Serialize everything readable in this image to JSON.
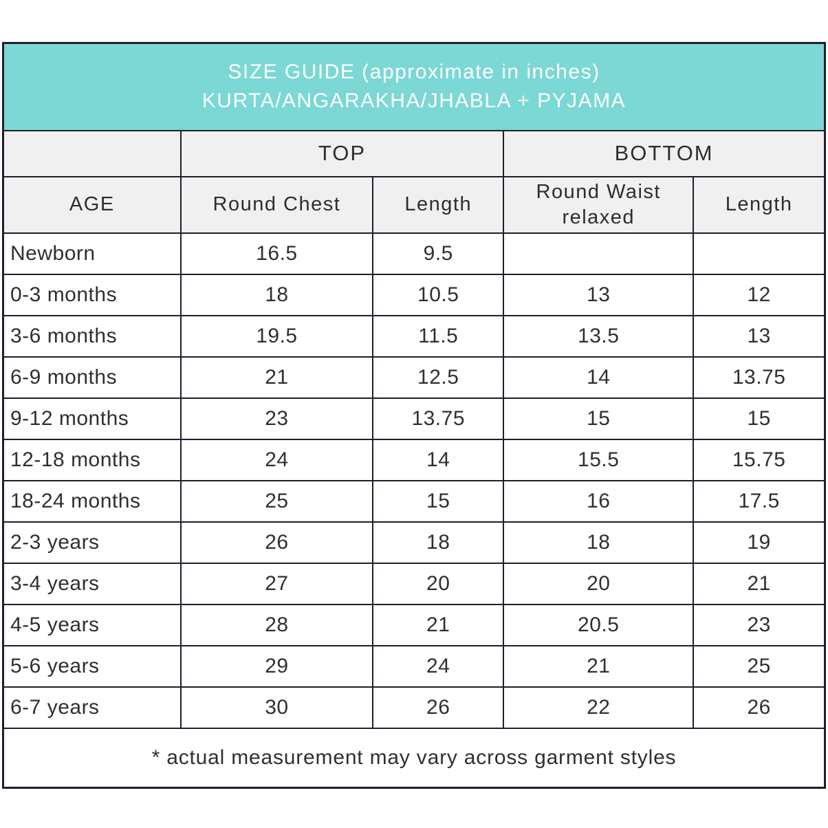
{
  "title": {
    "line1": "SIZE GUIDE (approximate in inches)",
    "line2": "KURTA/ANGARAKHA/JHABLA + PYJAMA"
  },
  "colors": {
    "title_band_bg": "#7bd8d4",
    "title_text": "#ffffff",
    "header_bg": "#f0f0f0",
    "border": "#1d1d2e",
    "body_text": "#2f2f2f"
  },
  "table": {
    "group_headers": {
      "age_spacer": "",
      "top": "TOP",
      "bottom": "BOTTOM"
    },
    "column_headers": {
      "age": "AGE",
      "round_chest": "Round Chest",
      "top_length": "Length",
      "round_waist": "Round Waist relaxed",
      "bottom_length": "Length"
    },
    "rows": [
      {
        "age": "Newborn",
        "values": [
          "16.5",
          "9.5",
          "",
          ""
        ]
      },
      {
        "age": "0-3 months",
        "values": [
          "18",
          "10.5",
          "13",
          "12"
        ]
      },
      {
        "age": "3-6 months",
        "values": [
          "19.5",
          "11.5",
          "13.5",
          "13"
        ]
      },
      {
        "age": "6-9 months",
        "values": [
          "21",
          "12.5",
          "14",
          "13.75"
        ]
      },
      {
        "age": "9-12 months",
        "values": [
          "23",
          "13.75",
          "15",
          "15"
        ]
      },
      {
        "age": "12-18 months",
        "values": [
          "24",
          "14",
          "15.5",
          "15.75"
        ]
      },
      {
        "age": "18-24 months",
        "values": [
          "25",
          "15",
          "16",
          "17.5"
        ]
      },
      {
        "age": "2-3 years",
        "values": [
          "26",
          "18",
          "18",
          "19"
        ]
      },
      {
        "age": "3-4 years",
        "values": [
          "27",
          "20",
          "20",
          "21"
        ]
      },
      {
        "age": "4-5 years",
        "values": [
          "28",
          "21",
          "20.5",
          "23"
        ]
      },
      {
        "age": "5-6 years",
        "values": [
          "29",
          "24",
          "21",
          "25"
        ]
      },
      {
        "age": "6-7 years",
        "values": [
          "30",
          "26",
          "22",
          "26"
        ]
      }
    ],
    "footnote": "* actual measurement may vary across garment styles"
  }
}
